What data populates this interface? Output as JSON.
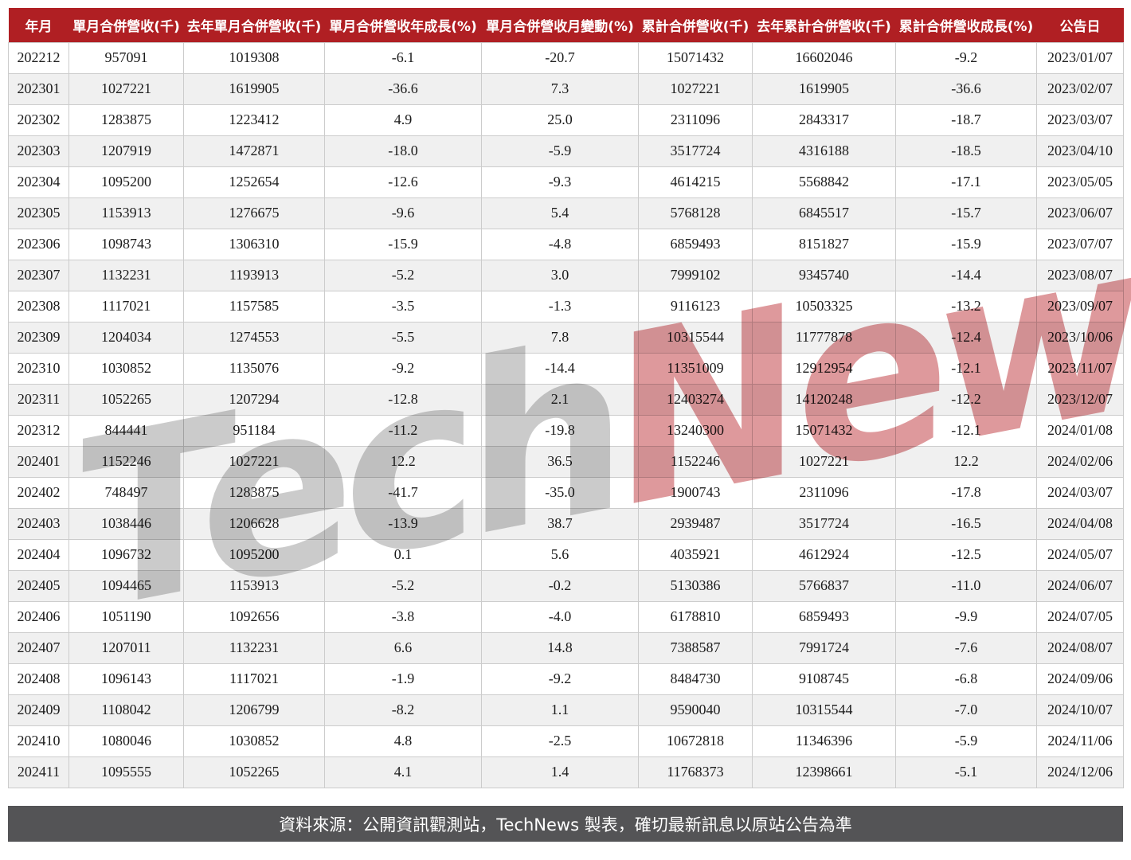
{
  "chart_data": {
    "type": "table",
    "title": "",
    "columns": [
      "年月",
      "單月合併營收(千)",
      "去年單月合併營收(千)",
      "單月合併營收年成長(%)",
      "單月合併營收月變動(%)",
      "累計合併營收(千)",
      "去年累計合併營收(千)",
      "累計合併營收成長(%)",
      "公告日"
    ],
    "rows": [
      [
        "202212",
        "957091",
        "1019308",
        "-6.1",
        "-20.7",
        "15071432",
        "16602046",
        "-9.2",
        "2023/01/07"
      ],
      [
        "202301",
        "1027221",
        "1619905",
        "-36.6",
        "7.3",
        "1027221",
        "1619905",
        "-36.6",
        "2023/02/07"
      ],
      [
        "202302",
        "1283875",
        "1223412",
        "4.9",
        "25.0",
        "2311096",
        "2843317",
        "-18.7",
        "2023/03/07"
      ],
      [
        "202303",
        "1207919",
        "1472871",
        "-18.0",
        "-5.9",
        "3517724",
        "4316188",
        "-18.5",
        "2023/04/10"
      ],
      [
        "202304",
        "1095200",
        "1252654",
        "-12.6",
        "-9.3",
        "4614215",
        "5568842",
        "-17.1",
        "2023/05/05"
      ],
      [
        "202305",
        "1153913",
        "1276675",
        "-9.6",
        "5.4",
        "5768128",
        "6845517",
        "-15.7",
        "2023/06/07"
      ],
      [
        "202306",
        "1098743",
        "1306310",
        "-15.9",
        "-4.8",
        "6859493",
        "8151827",
        "-15.9",
        "2023/07/07"
      ],
      [
        "202307",
        "1132231",
        "1193913",
        "-5.2",
        "3.0",
        "7999102",
        "9345740",
        "-14.4",
        "2023/08/07"
      ],
      [
        "202308",
        "1117021",
        "1157585",
        "-3.5",
        "-1.3",
        "9116123",
        "10503325",
        "-13.2",
        "2023/09/07"
      ],
      [
        "202309",
        "1204034",
        "1274553",
        "-5.5",
        "7.8",
        "10315544",
        "11777878",
        "-12.4",
        "2023/10/06"
      ],
      [
        "202310",
        "1030852",
        "1135076",
        "-9.2",
        "-14.4",
        "11351009",
        "12912954",
        "-12.1",
        "2023/11/07"
      ],
      [
        "202311",
        "1052265",
        "1207294",
        "-12.8",
        "2.1",
        "12403274",
        "14120248",
        "-12.2",
        "2023/12/07"
      ],
      [
        "202312",
        "844441",
        "951184",
        "-11.2",
        "-19.8",
        "13240300",
        "15071432",
        "-12.1",
        "2024/01/08"
      ],
      [
        "202401",
        "1152246",
        "1027221",
        "12.2",
        "36.5",
        "1152246",
        "1027221",
        "12.2",
        "2024/02/06"
      ],
      [
        "202402",
        "748497",
        "1283875",
        "-41.7",
        "-35.0",
        "1900743",
        "2311096",
        "-17.8",
        "2024/03/07"
      ],
      [
        "202403",
        "1038446",
        "1206628",
        "-13.9",
        "38.7",
        "2939487",
        "3517724",
        "-16.5",
        "2024/04/08"
      ],
      [
        "202404",
        "1096732",
        "1095200",
        "0.1",
        "5.6",
        "4035921",
        "4612924",
        "-12.5",
        "2024/05/07"
      ],
      [
        "202405",
        "1094465",
        "1153913",
        "-5.2",
        "-0.2",
        "5130386",
        "5766837",
        "-11.0",
        "2024/06/07"
      ],
      [
        "202406",
        "1051190",
        "1092656",
        "-3.8",
        "-4.0",
        "6178810",
        "6859493",
        "-9.9",
        "2024/07/05"
      ],
      [
        "202407",
        "1207011",
        "1132231",
        "6.6",
        "14.8",
        "7388587",
        "7991724",
        "-7.6",
        "2024/08/07"
      ],
      [
        "202408",
        "1096143",
        "1117021",
        "-1.9",
        "-9.2",
        "8484730",
        "9108745",
        "-6.8",
        "2024/09/06"
      ],
      [
        "202409",
        "1108042",
        "1206799",
        "-8.2",
        "1.1",
        "9590040",
        "10315544",
        "-7.0",
        "2024/10/07"
      ],
      [
        "202410",
        "1080046",
        "1030852",
        "4.8",
        "-2.5",
        "10672818",
        "11346396",
        "-5.9",
        "2024/11/06"
      ],
      [
        "202411",
        "1095555",
        "1052265",
        "4.1",
        "1.4",
        "11768373",
        "12398661",
        "-5.1",
        "2024/12/06"
      ]
    ]
  },
  "watermark": {
    "part1": "Tech",
    "part2": "News"
  },
  "footer": {
    "text": "資料來源：公開資訊觀測站，TechNews 製表，確切最新訊息以原站公告為準"
  },
  "colors": {
    "header_bg": "#b01f23",
    "row_alt_bg": "#f0f0f0",
    "border": "#cccccc",
    "footer_bg": "#545456",
    "watermark_gray": "#cbcbcb",
    "watermark_red": "#de999c"
  }
}
